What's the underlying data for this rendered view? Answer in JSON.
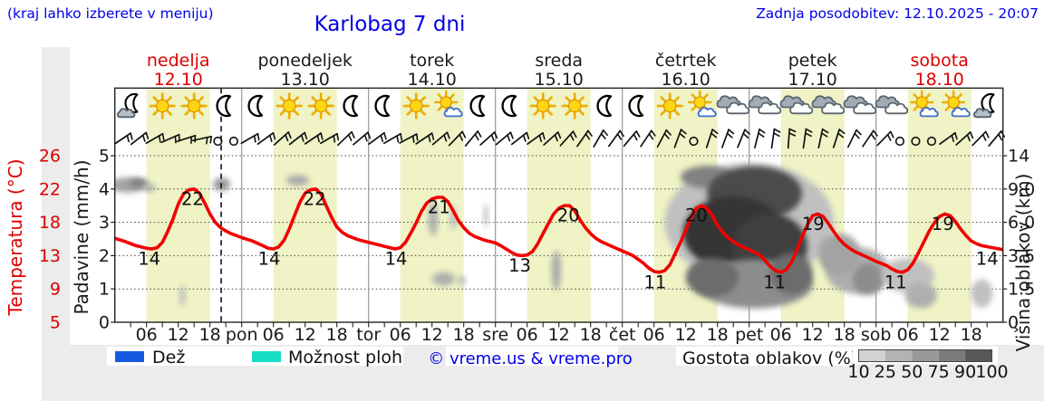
{
  "header": {
    "note_left": "(kraj lahko izberete v meniju)",
    "title": "Karlobag 7 dni",
    "updated": "Zadnja posodobitev: 12.10.2025 - 20:07"
  },
  "days": [
    {
      "name": "nedelja",
      "date": "12.10",
      "highlight": true
    },
    {
      "name": "ponedeljek",
      "date": "13.10",
      "highlight": false
    },
    {
      "name": "torek",
      "date": "14.10",
      "highlight": false
    },
    {
      "name": "sreda",
      "date": "15.10",
      "highlight": false
    },
    {
      "name": "četrtek",
      "date": "16.10",
      "highlight": false
    },
    {
      "name": "petek",
      "date": "17.10",
      "highlight": false
    },
    {
      "name": "sobota",
      "date": "18.10",
      "highlight": true
    }
  ],
  "axes": {
    "temp": {
      "label": "Temperatura (°C)",
      "ticks": [
        26,
        22,
        18,
        13,
        9,
        5
      ],
      "color": "#dd0000"
    },
    "precip": {
      "label": "Padavine (mm/h)",
      "ticks": [
        5,
        4,
        3,
        2,
        1,
        0
      ]
    },
    "cloud_height": {
      "label": "Višina oblakov (km)",
      "ticks": [
        "14",
        "9.0",
        "6.0",
        "3.5",
        "1.5",
        "0"
      ]
    },
    "time": {
      "hour_labels": [
        "06",
        "12",
        "18"
      ],
      "day_abbreviations": [
        "pon",
        "tor",
        "sre",
        "čet",
        "pet",
        "sob"
      ]
    }
  },
  "legend": {
    "rain_label": "Dež",
    "showers_label": "Možnost ploh",
    "copyright": "© vreme.us & vreme.pro",
    "cloud_density_label": "Gostota oblakov (%)",
    "density_steps": [
      "10",
      "25",
      "50",
      "75",
      "90",
      "100"
    ],
    "rain_color": "#1459e0",
    "showers_color": "#17dcc6",
    "density_colors": [
      "#d2d2d2",
      "#b3b3b3",
      "#989898",
      "#7b7b7b",
      "#575757"
    ]
  },
  "colors": {
    "day_band": "#eff3c5",
    "curve": "#f10000",
    "highlight_day": "#dd0000",
    "normal_day": "#1a1a1a",
    "grid": "#444444",
    "day_line": "#909090",
    "frame": "#222222",
    "panel_gray": "#ececec"
  },
  "chart_data": {
    "type": "line",
    "x_unit": "hours_from_sunday_00",
    "x_range": [
      0,
      168
    ],
    "day_band_hours": [
      6,
      18
    ],
    "current_time_hours": 20.12,
    "temp_axis_stops": [
      [
        5,
        356
      ],
      [
        9,
        319.2
      ],
      [
        13,
        282.4
      ],
      [
        18,
        245.6
      ],
      [
        22,
        208.8
      ],
      [
        26,
        172
      ]
    ],
    "km_axis_stops": [
      [
        0,
        356
      ],
      [
        1.5,
        319.2
      ],
      [
        3.5,
        282.4
      ],
      [
        6,
        245.6
      ],
      [
        9,
        208.8
      ],
      [
        14,
        172
      ]
    ],
    "temperature_curve": [
      [
        0,
        15.6
      ],
      [
        2,
        15.1
      ],
      [
        4,
        14.5
      ],
      [
        6,
        14.1
      ],
      [
        7,
        14.0
      ],
      [
        8,
        14.2
      ],
      [
        9,
        15.0
      ],
      [
        10,
        16.6
      ],
      [
        11,
        18.4
      ],
      [
        12,
        20.2
      ],
      [
        13,
        21.4
      ],
      [
        14,
        21.9
      ],
      [
        15,
        22.0
      ],
      [
        16,
        21.5
      ],
      [
        17,
        20.3
      ],
      [
        18,
        19.0
      ],
      [
        19,
        18.0
      ],
      [
        20,
        17.2
      ],
      [
        21,
        16.7
      ],
      [
        22,
        16.3
      ],
      [
        24,
        15.7
      ],
      [
        26,
        15.2
      ],
      [
        28,
        14.5
      ],
      [
        29,
        14.1
      ],
      [
        30,
        14.0
      ],
      [
        31,
        14.3
      ],
      [
        32,
        15.3
      ],
      [
        33,
        17.0
      ],
      [
        34,
        18.8
      ],
      [
        35,
        20.4
      ],
      [
        36,
        21.5
      ],
      [
        37,
        21.9
      ],
      [
        38,
        22.0
      ],
      [
        39,
        21.4
      ],
      [
        40,
        20.0
      ],
      [
        41,
        18.6
      ],
      [
        42,
        17.3
      ],
      [
        43,
        16.5
      ],
      [
        44,
        16.0
      ],
      [
        46,
        15.4
      ],
      [
        48,
        15.0
      ],
      [
        50,
        14.6
      ],
      [
        52,
        14.2
      ],
      [
        53,
        14.0
      ],
      [
        54,
        14.2
      ],
      [
        55,
        15.0
      ],
      [
        56,
        16.4
      ],
      [
        57,
        17.9
      ],
      [
        58,
        19.3
      ],
      [
        59,
        20.3
      ],
      [
        60,
        20.8
      ],
      [
        61,
        21.0
      ],
      [
        62,
        21.0
      ],
      [
        63,
        20.5
      ],
      [
        64,
        19.4
      ],
      [
        65,
        18.2
      ],
      [
        66,
        17.2
      ],
      [
        67,
        16.4
      ],
      [
        68,
        15.9
      ],
      [
        69,
        15.6
      ],
      [
        70,
        15.3
      ],
      [
        71,
        15.1
      ],
      [
        72,
        14.9
      ],
      [
        73,
        14.5
      ],
      [
        74,
        14.0
      ],
      [
        75,
        13.5
      ],
      [
        76,
        13.1
      ],
      [
        77,
        13.0
      ],
      [
        78,
        13.1
      ],
      [
        79,
        13.6
      ],
      [
        80,
        14.8
      ],
      [
        81,
        16.3
      ],
      [
        82,
        17.8
      ],
      [
        83,
        19.0
      ],
      [
        84,
        19.7
      ],
      [
        85,
        20.0
      ],
      [
        86,
        20.0
      ],
      [
        87,
        19.4
      ],
      [
        88,
        18.3
      ],
      [
        89,
        17.2
      ],
      [
        90,
        16.3
      ],
      [
        91,
        15.6
      ],
      [
        92,
        15.1
      ],
      [
        94,
        14.4
      ],
      [
        96,
        13.7
      ],
      [
        98,
        13.0
      ],
      [
        100,
        12.1
      ],
      [
        101,
        11.5
      ],
      [
        102,
        11.1
      ],
      [
        103,
        11.0
      ],
      [
        104,
        11.2
      ],
      [
        105,
        11.9
      ],
      [
        106,
        13.3
      ],
      [
        107,
        15.0
      ],
      [
        108,
        16.8
      ],
      [
        109,
        18.6
      ],
      [
        110,
        19.7
      ],
      [
        111,
        20.0
      ],
      [
        112,
        19.7
      ],
      [
        113,
        18.8
      ],
      [
        114,
        17.6
      ],
      [
        115,
        16.5
      ],
      [
        116,
        15.7
      ],
      [
        117,
        15.1
      ],
      [
        118,
        14.6
      ],
      [
        120,
        13.9
      ],
      [
        122,
        13.1
      ],
      [
        123,
        12.4
      ],
      [
        124,
        11.7
      ],
      [
        125,
        11.2
      ],
      [
        126,
        11.0
      ],
      [
        127,
        11.3
      ],
      [
        128,
        12.2
      ],
      [
        129,
        13.8
      ],
      [
        130,
        15.8
      ],
      [
        131,
        17.6
      ],
      [
        132,
        18.8
      ],
      [
        133,
        19.0
      ],
      [
        134,
        18.7
      ],
      [
        135,
        17.8
      ],
      [
        136,
        16.6
      ],
      [
        137,
        15.5
      ],
      [
        138,
        14.7
      ],
      [
        139,
        14.1
      ],
      [
        140,
        13.6
      ],
      [
        142,
        12.9
      ],
      [
        144,
        12.3
      ],
      [
        146,
        11.8
      ],
      [
        147,
        11.4
      ],
      [
        148,
        11.1
      ],
      [
        149,
        11.0
      ],
      [
        150,
        11.3
      ],
      [
        151,
        12.1
      ],
      [
        152,
        13.4
      ],
      [
        153,
        15.0
      ],
      [
        154,
        16.6
      ],
      [
        155,
        17.9
      ],
      [
        156,
        18.7
      ],
      [
        157,
        19.0
      ],
      [
        158,
        18.8
      ],
      [
        159,
        18.1
      ],
      [
        160,
        17.0
      ],
      [
        161,
        16.0
      ],
      [
        162,
        15.2
      ],
      [
        163,
        14.8
      ],
      [
        164,
        14.5
      ],
      [
        166,
        14.2
      ],
      [
        168,
        13.9
      ]
    ],
    "temp_point_labels": [
      {
        "t": 6.5,
        "v": 14
      },
      {
        "t": 14.7,
        "v": 22
      },
      {
        "t": 29.2,
        "v": 14
      },
      {
        "t": 37.8,
        "v": 22
      },
      {
        "t": 53.2,
        "v": 14
      },
      {
        "t": 61.3,
        "v": 21
      },
      {
        "t": 76.6,
        "v": 13
      },
      {
        "t": 85.8,
        "v": 20
      },
      {
        "t": 102.2,
        "v": 11
      },
      {
        "t": 110,
        "v": 20
      },
      {
        "t": 124.8,
        "v": 11
      },
      {
        "t": 132.1,
        "v": 19
      },
      {
        "t": 147.7,
        "v": 11
      },
      {
        "t": 156.6,
        "v": 19
      },
      {
        "t": 165,
        "v": 14
      }
    ],
    "weather_icons": [
      "moon-cloud",
      "sun",
      "sun",
      "moon",
      "moon",
      "sun",
      "sun",
      "moon",
      "moon",
      "sun",
      "sun-cloud",
      "moon",
      "moon",
      "sun",
      "sun",
      "moon",
      "moon",
      "sun",
      "sun-cloud",
      "cloud",
      "cloud",
      "cloud",
      "cloud",
      "cloud",
      "cloud",
      "sun-cloud",
      "sun-cloud",
      "moon-cloud"
    ],
    "wind_barbs": [
      34,
      38,
      30,
      24,
      18,
      12,
      "calm",
      "calm",
      30,
      36,
      42,
      38,
      34,
      30,
      44,
      40,
      36,
      30,
      28,
      34,
      40,
      46,
      50,
      42,
      40,
      38,
      36,
      42,
      48,
      55,
      60,
      54,
      50,
      56,
      62,
      70,
      "calm",
      72,
      70,
      68,
      76,
      82,
      86,
      82,
      78,
      72,
      64,
      56,
      46,
      "calm",
      "calm",
      "calm",
      36,
      42,
      46,
      50
    ],
    "cloud_blobs": [
      {
        "t": 2.5,
        "km": 9.6,
        "rt": 3.5,
        "rkm": 1.0,
        "d": 0.35
      },
      {
        "t": 4.5,
        "km": 9.9,
        "rt": 1.8,
        "rkm": 0.7,
        "d": 0.5
      },
      {
        "t": 6.5,
        "km": 9.2,
        "rt": 1.2,
        "rkm": 0.5,
        "d": 0.3
      },
      {
        "t": 20.2,
        "km": 9.7,
        "rt": 1.6,
        "rkm": 0.9,
        "d": 0.42
      },
      {
        "t": 34.6,
        "km": 10.3,
        "rt": 2.2,
        "rkm": 0.8,
        "d": 0.32
      },
      {
        "t": 12.8,
        "km": 1.2,
        "rt": 0.6,
        "rkm": 0.5,
        "d": 0.22
      },
      {
        "t": 60.2,
        "km": 6.3,
        "rt": 0.9,
        "rkm": 1.4,
        "d": 0.3
      },
      {
        "t": 64.0,
        "km": 6.4,
        "rt": 0.7,
        "rkm": 1.0,
        "d": 0.22
      },
      {
        "t": 70.2,
        "km": 6.6,
        "rt": 0.45,
        "rkm": 1.0,
        "d": 0.22
      },
      {
        "t": 62.2,
        "km": 2.1,
        "rt": 2.2,
        "rkm": 0.4,
        "d": 0.3
      },
      {
        "t": 65.6,
        "km": 2.0,
        "rt": 0.7,
        "rkm": 0.3,
        "d": 0.25
      },
      {
        "t": 83.5,
        "km": 2.6,
        "rt": 0.9,
        "rkm": 1.2,
        "d": 0.32
      },
      {
        "t": 120,
        "km": 6.0,
        "rt": 16,
        "rkm": 4.8,
        "d": 0.22
      },
      {
        "t": 112,
        "km": 10.8,
        "rt": 5,
        "rkm": 1.7,
        "d": 0.5
      },
      {
        "t": 121,
        "km": 8.6,
        "rt": 9,
        "rkm": 2.9,
        "d": 0.75
      },
      {
        "t": 117,
        "km": 5.2,
        "rt": 9.5,
        "rkm": 2.8,
        "d": 0.85
      },
      {
        "t": 124,
        "km": 4.2,
        "rt": 7,
        "rkm": 2.3,
        "d": 0.8
      },
      {
        "t": 121,
        "km": 1.8,
        "rt": 11,
        "rkm": 1.3,
        "d": 0.45
      },
      {
        "t": 113,
        "km": 2.2,
        "rt": 5,
        "rkm": 1.1,
        "d": 0.6
      },
      {
        "t": 128,
        "km": 2.4,
        "rt": 4,
        "rkm": 1.2,
        "d": 0.6
      },
      {
        "t": 140.5,
        "km": 2.6,
        "rt": 6,
        "rkm": 1.4,
        "d": 0.3
      },
      {
        "t": 142.5,
        "km": 2.1,
        "rt": 3,
        "rkm": 0.9,
        "d": 0.45
      },
      {
        "t": 137,
        "km": 3.6,
        "rt": 4,
        "rkm": 1.4,
        "d": 0.35
      },
      {
        "t": 150,
        "km": 2.3,
        "rt": 5,
        "rkm": 1.0,
        "d": 0.22
      },
      {
        "t": 152.5,
        "km": 1.2,
        "rt": 3,
        "rkm": 0.6,
        "d": 0.3
      },
      {
        "t": 164,
        "km": 1.3,
        "rt": 2,
        "rkm": 0.7,
        "d": 0.22
      }
    ]
  }
}
